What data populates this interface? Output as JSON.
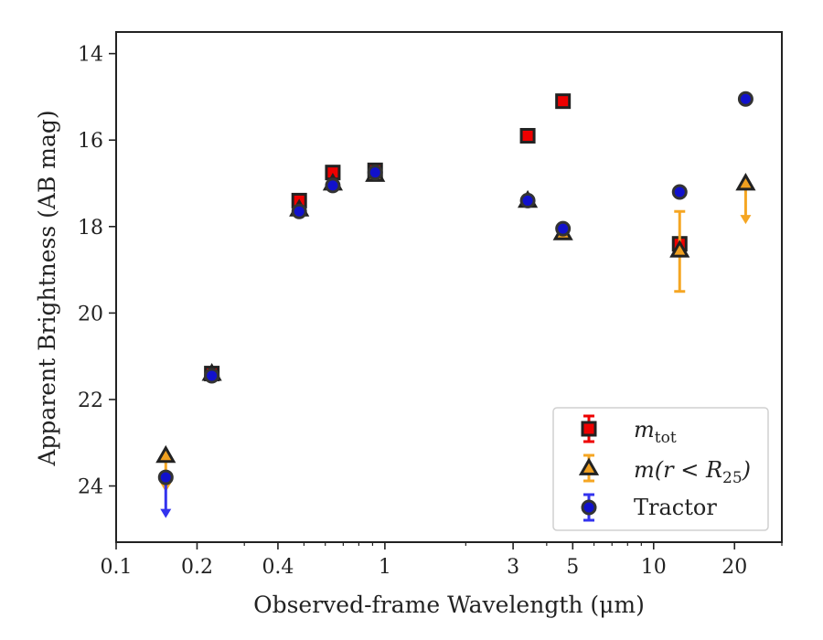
{
  "chart_data": {
    "type": "scatter",
    "xlabel": "Observed-frame Wavelength (μm)",
    "ylabel": "Apparent Brightness (AB mag)",
    "xscale": "log",
    "xlim": [
      0.1,
      30
    ],
    "ylim": [
      25.3,
      13.5
    ],
    "y_inverted": true,
    "xticks": [
      {
        "value": 0.1,
        "label": "0.1"
      },
      {
        "value": 0.2,
        "label": "0.2"
      },
      {
        "value": 0.4,
        "label": "0.4"
      },
      {
        "value": 1,
        "label": "1"
      },
      {
        "value": 3,
        "label": "3"
      },
      {
        "value": 5,
        "label": "5"
      },
      {
        "value": 10,
        "label": "10"
      },
      {
        "value": 20,
        "label": "20"
      }
    ],
    "yticks": [
      {
        "value": 14,
        "label": "14"
      },
      {
        "value": 16,
        "label": "16"
      },
      {
        "value": 18,
        "label": "18"
      },
      {
        "value": 20,
        "label": "20"
      },
      {
        "value": 22,
        "label": "22"
      },
      {
        "value": 24,
        "label": "24"
      }
    ],
    "legend_position": "lower-right",
    "series": [
      {
        "key": "mtot",
        "marker": "square",
        "face": "#ee0000",
        "edge": "#222222",
        "errcolor": "#ee0000",
        "points": [
          {
            "x": 0.227,
            "y": 21.4
          },
          {
            "x": 0.48,
            "y": 17.4
          },
          {
            "x": 0.64,
            "y": 16.75
          },
          {
            "x": 0.92,
            "y": 16.7
          },
          {
            "x": 3.4,
            "y": 15.9
          },
          {
            "x": 4.6,
            "y": 15.1
          },
          {
            "x": 12.5,
            "y": 18.4
          }
        ]
      },
      {
        "key": "mr25",
        "marker": "triangle",
        "face": "#f0a020",
        "edge": "#222222",
        "errcolor": "#f5a623",
        "points": [
          {
            "x": 0.153,
            "y": 23.3,
            "upper_limit_to": 24.1
          },
          {
            "x": 0.227,
            "y": 21.4
          },
          {
            "x": 0.48,
            "y": 17.6
          },
          {
            "x": 0.64,
            "y": 17.0
          },
          {
            "x": 0.92,
            "y": 16.8
          },
          {
            "x": 3.4,
            "y": 17.4
          },
          {
            "x": 4.6,
            "y": 18.15
          },
          {
            "x": 12.5,
            "y": 18.55,
            "err_low": 17.65,
            "err_high": 19.5
          },
          {
            "x": 22,
            "y": 17.0,
            "upper_limit_to": 17.9
          }
        ]
      },
      {
        "key": "tractor",
        "marker": "circle",
        "face": "#1111cc",
        "edge": "#333333",
        "errcolor": "#3333ee",
        "points": [
          {
            "x": 0.153,
            "y": 23.8,
            "upper_limit_to": 24.7
          },
          {
            "x": 0.227,
            "y": 21.45
          },
          {
            "x": 0.48,
            "y": 17.65
          },
          {
            "x": 0.64,
            "y": 17.05
          },
          {
            "x": 0.92,
            "y": 16.75
          },
          {
            "x": 3.4,
            "y": 17.4
          },
          {
            "x": 4.6,
            "y": 18.05
          },
          {
            "x": 12.5,
            "y": 17.2
          },
          {
            "x": 22,
            "y": 15.05
          }
        ]
      }
    ]
  },
  "legend": {
    "mtot_base": "m",
    "mtot_sub": "tot",
    "mr25_pre": "m(r < R",
    "mr25_sub": "25",
    "mr25_post": ")",
    "tractor": "Tractor"
  }
}
